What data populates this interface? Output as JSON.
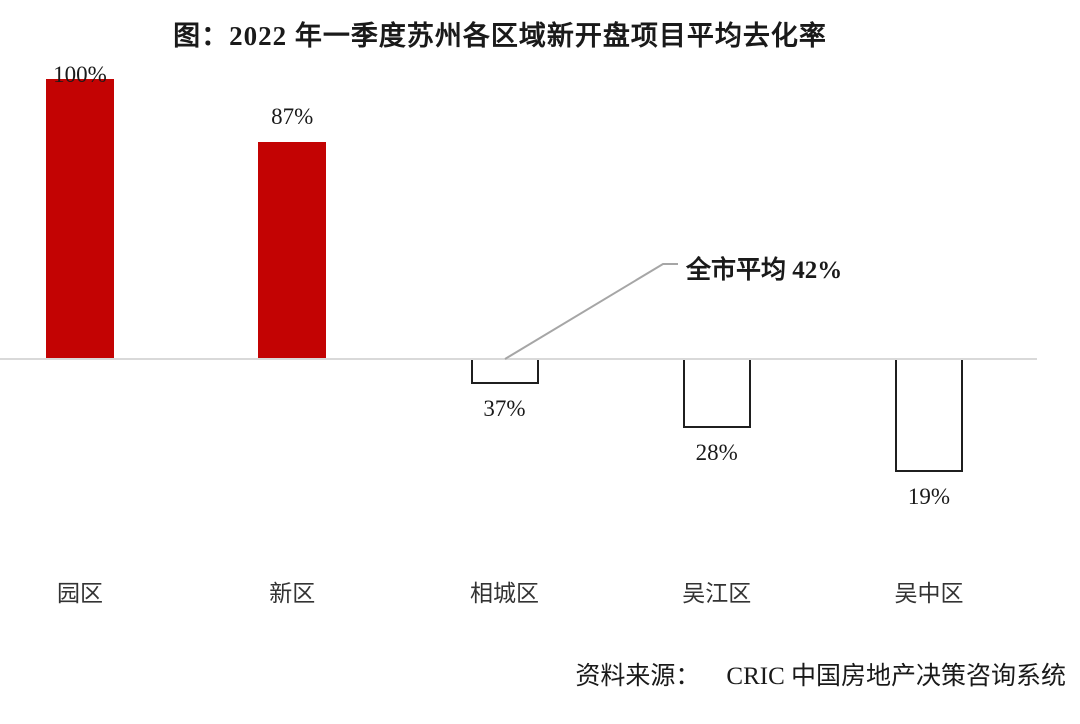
{
  "title": "图：2022 年一季度苏州各区域新开盘项目平均去化率",
  "annotation": {
    "label": "全市平均 42%"
  },
  "source": {
    "label": "资料来源：",
    "value": "CRIC 中国房地产决策咨询系统"
  },
  "colors": {
    "bar_positive": "#c30303",
    "bar_negative_outline": "#1f1f1f",
    "baseline": "#d9d9d9",
    "callout_line": "#a6a6a6",
    "text": "#1a1a1a"
  },
  "chart_data": {
    "type": "bar",
    "title": "图：2022 年一季度苏州各区域新开盘项目平均去化率",
    "categories": [
      "园区",
      "新区",
      "相城区",
      "吴江区",
      "吴中区"
    ],
    "values": [
      100,
      87,
      37,
      28,
      19
    ],
    "unit": "%",
    "value_labels": [
      "100%",
      "87%",
      "37%",
      "28%",
      "19%"
    ],
    "baseline_value": 42,
    "baseline_label": "全市平均 42%",
    "ylim": [
      0,
      100
    ],
    "grid": false,
    "legend": false,
    "style_note": "Values above the 42% city-average baseline render as solid red bars rising above the axis line; values below render as white black-outlined bars hanging below the axis line."
  }
}
